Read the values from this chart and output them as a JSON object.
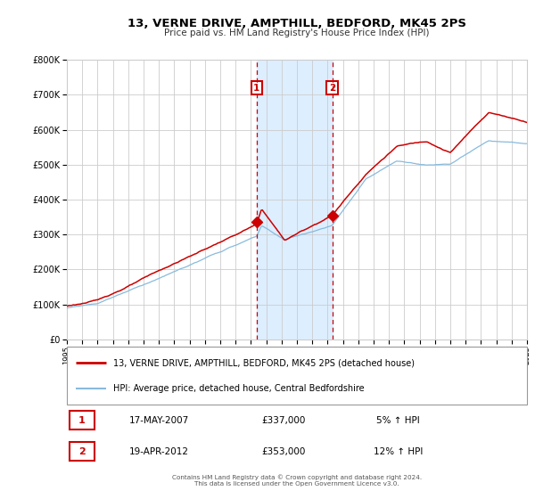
{
  "title": "13, VERNE DRIVE, AMPTHILL, BEDFORD, MK45 2PS",
  "subtitle": "Price paid vs. HM Land Registry's House Price Index (HPI)",
  "legend_line1": "13, VERNE DRIVE, AMPTHILL, BEDFORD, MK45 2PS (detached house)",
  "legend_line2": "HPI: Average price, detached house, Central Bedfordshire",
  "annotation1_date": "17-MAY-2007",
  "annotation1_price": "£337,000",
  "annotation1_hpi": "5% ↑ HPI",
  "annotation2_date": "19-APR-2012",
  "annotation2_price": "£353,000",
  "annotation2_hpi": "12% ↑ HPI",
  "vline1_x": 2007.38,
  "vline2_x": 2012.3,
  "shade_xmin": 2007.38,
  "shade_xmax": 2012.3,
  "red_dot1_x": 2007.38,
  "red_dot1_y": 337000,
  "red_dot2_x": 2012.3,
  "red_dot2_y": 353000,
  "ylim": [
    0,
    800000
  ],
  "xlim": [
    1995,
    2025
  ],
  "line_color_red": "#cc0000",
  "line_color_blue": "#88bbdd",
  "shade_color": "#ddeeff",
  "vline_color": "#cc0000",
  "grid_color": "#cccccc",
  "bg_color": "#ffffff",
  "footer_text": "Contains HM Land Registry data © Crown copyright and database right 2024.\nThis data is licensed under the Open Government Licence v3.0.",
  "yticks": [
    0,
    100000,
    200000,
    300000,
    400000,
    500000,
    600000,
    700000,
    800000
  ],
  "ytick_labels": [
    "£0",
    "£100K",
    "£200K",
    "£300K",
    "£400K",
    "£500K",
    "£600K",
    "£700K",
    "£800K"
  ]
}
